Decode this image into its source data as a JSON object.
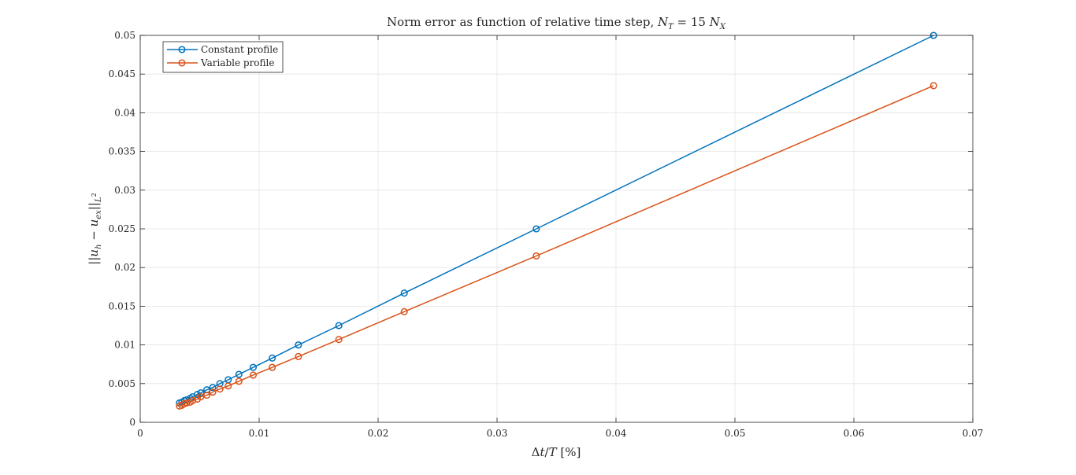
{
  "chart_data": {
    "type": "line",
    "title_parts": [
      "Norm error as function of relative time step, ",
      "N",
      "T",
      " = 15 ",
      "N",
      "X"
    ],
    "xlabel_parts": [
      "Δ",
      "t",
      "/",
      "T",
      " [%]"
    ],
    "ylabel_parts": [
      "||",
      "u",
      "h",
      " − ",
      "u",
      "ex",
      "||",
      "L",
      "2"
    ],
    "xlim": [
      0,
      0.07
    ],
    "ylim": [
      0,
      0.05
    ],
    "xticks": [
      0,
      0.01,
      0.02,
      0.03,
      0.04,
      0.05,
      0.06,
      0.07
    ],
    "xtick_labels": [
      "0",
      "0.01",
      "0.02",
      "0.03",
      "0.04",
      "0.05",
      "0.06",
      "0.07"
    ],
    "yticks": [
      0,
      0.005,
      0.01,
      0.015,
      0.02,
      0.025,
      0.03,
      0.035,
      0.04,
      0.045,
      0.05
    ],
    "ytick_labels": [
      "0",
      "0.005",
      "0.01",
      "0.015",
      "0.02",
      "0.025",
      "0.03",
      "0.035",
      "0.04",
      "0.045",
      "0.05"
    ],
    "grid": true,
    "legend_position": "top-left",
    "series": [
      {
        "name": "Constant profile",
        "color": "#0072BD",
        "x": [
          0.0667,
          0.0333,
          0.0222,
          0.0167,
          0.0133,
          0.0111,
          0.0095,
          0.0083,
          0.0074,
          0.0067,
          0.0061,
          0.0056,
          0.0051,
          0.0048,
          0.0044,
          0.0042,
          0.0039,
          0.0037,
          0.0035,
          0.0033
        ],
        "y": [
          0.05,
          0.025,
          0.0167,
          0.0125,
          0.01,
          0.0083,
          0.0071,
          0.0062,
          0.0055,
          0.005,
          0.0045,
          0.0042,
          0.0038,
          0.0036,
          0.0033,
          0.0031,
          0.0029,
          0.0028,
          0.0026,
          0.0025
        ]
      },
      {
        "name": "Variable profile",
        "color": "#D95319",
        "x": [
          0.0667,
          0.0333,
          0.0222,
          0.0167,
          0.0133,
          0.0111,
          0.0095,
          0.0083,
          0.0074,
          0.0067,
          0.0061,
          0.0056,
          0.0051,
          0.0048,
          0.0044,
          0.0042,
          0.0039,
          0.0037,
          0.0035,
          0.0033
        ],
        "y": [
          0.0435,
          0.0215,
          0.0143,
          0.0107,
          0.0085,
          0.0071,
          0.0061,
          0.0053,
          0.0047,
          0.0043,
          0.0039,
          0.0035,
          0.0033,
          0.003,
          0.0028,
          0.0026,
          0.0025,
          0.0024,
          0.0022,
          0.0021
        ]
      }
    ]
  }
}
